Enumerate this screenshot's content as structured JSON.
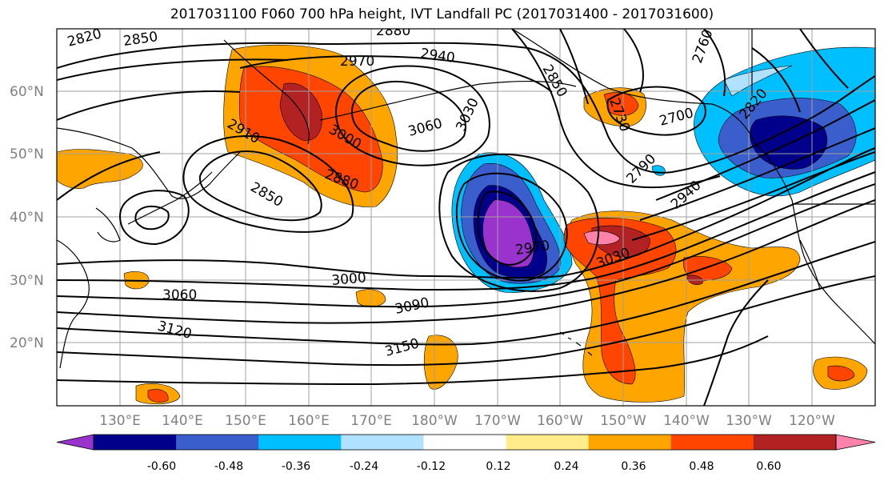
{
  "title": "2017031100 F060 700 hPa height, IVT Landfall PC (2017031400 - 2017031600)",
  "lat_labels": [
    "60°N",
    "50°N",
    "40°N",
    "30°N",
    "20°N"
  ],
  "lon_labels": [
    "130°E",
    "140°E",
    "150°E",
    "160°E",
    "170°E",
    "180°W",
    "170°W",
    "160°W",
    "150°W",
    "140°W",
    "130°W",
    "120°W"
  ],
  "contour_labels": [
    "2820",
    "2850",
    "2880",
    "2940",
    "2970",
    "2850",
    "2760",
    "2910",
    "3000",
    "3060",
    "3030",
    "2730",
    "2700",
    "2820",
    "2850",
    "2880",
    "2790",
    "2940",
    "2970",
    "3030",
    "3000",
    "3060",
    "3090",
    "3120",
    "3150"
  ],
  "colorbar": {
    "colors": [
      "#9a32cd",
      "#00008b",
      "#3a5fcd",
      "#00bfff",
      "#b0e2ff",
      "#ffffff",
      "#ffec8b",
      "#ffa500",
      "#ff4500",
      "#b22222",
      "#ff82ab"
    ],
    "tick_labels": [
      "-0.60",
      "-0.48",
      "-0.36",
      "-0.24",
      "-0.12",
      "0.12",
      "0.24",
      "0.36",
      "0.48",
      "0.60"
    ]
  }
}
